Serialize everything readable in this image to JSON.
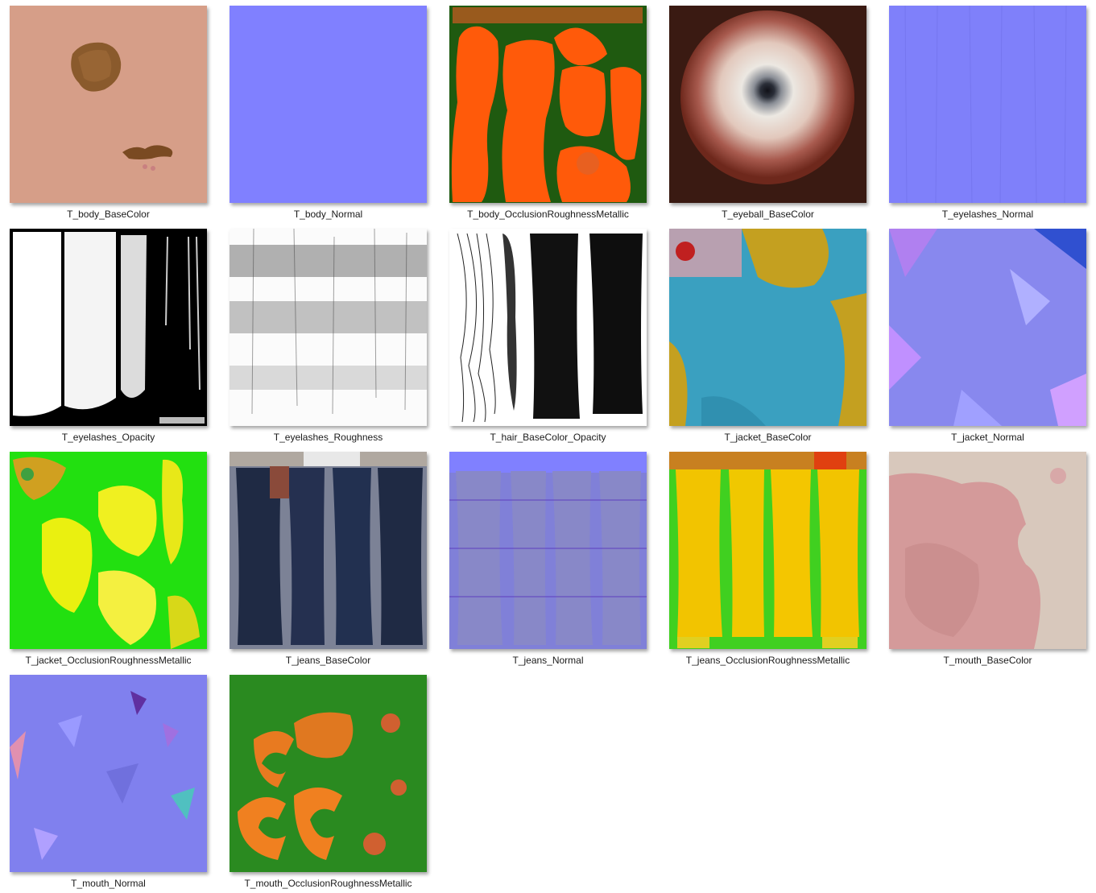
{
  "items": [
    {
      "name": "T_body_BaseColor"
    },
    {
      "name": "T_body_Normal"
    },
    {
      "name": "T_body_OcclusionRoughnessMetallic"
    },
    {
      "name": "T_eyeball_BaseColor"
    },
    {
      "name": "T_eyelashes_Normal"
    },
    {
      "name": "T_eyelashes_Opacity"
    },
    {
      "name": "T_eyelashes_Roughness"
    },
    {
      "name": "T_hair_BaseColor_Opacity"
    },
    {
      "name": "T_jacket_BaseColor"
    },
    {
      "name": "T_jacket_Normal"
    },
    {
      "name": "T_jacket_OcclusionRoughnessMetallic"
    },
    {
      "name": "T_jeans_BaseColor"
    },
    {
      "name": "T_jeans_Normal"
    },
    {
      "name": "T_jeans_OcclusionRoughnessMetallic"
    },
    {
      "name": "T_mouth_BaseColor"
    },
    {
      "name": "T_mouth_Normal"
    },
    {
      "name": "T_mouth_OcclusionRoughnessMetallic"
    }
  ]
}
